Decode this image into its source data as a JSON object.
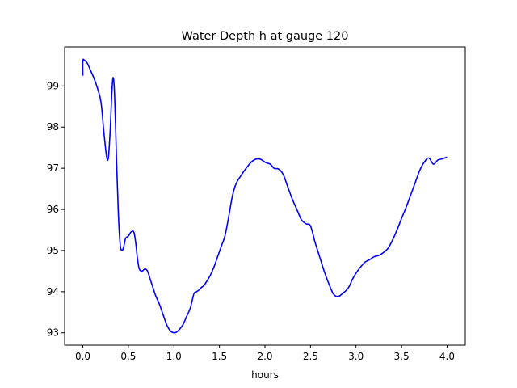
{
  "chart_data": {
    "type": "line",
    "title": "Water Depth h at gauge 120",
    "xlabel": "hours",
    "ylabel": "",
    "xlim": [
      -0.2,
      4.2
    ],
    "ylim": [
      92.7,
      99.95
    ],
    "xticks": [
      0.0,
      0.5,
      1.0,
      1.5,
      2.0,
      2.5,
      3.0,
      3.5,
      4.0
    ],
    "xtick_labels": [
      "0.0",
      "0.5",
      "1.0",
      "1.5",
      "2.0",
      "2.5",
      "3.0",
      "3.5",
      "4.0"
    ],
    "yticks": [
      93,
      94,
      95,
      96,
      97,
      98,
      99
    ],
    "ytick_labels": [
      "93",
      "94",
      "95",
      "96",
      "97",
      "98",
      "99"
    ],
    "grid": false,
    "series": [
      {
        "color": "#0000ff",
        "x": [
          0.0,
          0.0,
          0.02,
          0.05,
          0.08,
          0.12,
          0.16,
          0.2,
          0.23,
          0.26,
          0.28,
          0.3,
          0.32,
          0.335,
          0.35,
          0.37,
          0.39,
          0.41,
          0.43,
          0.45,
          0.47,
          0.5,
          0.53,
          0.56,
          0.58,
          0.6,
          0.62,
          0.65,
          0.68,
          0.71,
          0.74,
          0.77,
          0.8,
          0.84,
          0.88,
          0.92,
          0.96,
          1.0,
          1.03,
          1.06,
          1.1,
          1.14,
          1.18,
          1.22,
          1.25,
          1.28,
          1.3,
          1.33,
          1.36,
          1.4,
          1.44,
          1.48,
          1.52,
          1.56,
          1.6,
          1.64,
          1.67,
          1.7,
          1.73,
          1.76,
          1.8,
          1.85,
          1.9,
          1.95,
          2.0,
          2.03,
          2.06,
          2.1,
          2.15,
          2.2,
          2.25,
          2.3,
          2.35,
          2.4,
          2.45,
          2.5,
          2.55,
          2.6,
          2.65,
          2.7,
          2.75,
          2.8,
          2.85,
          2.9,
          2.93,
          2.96,
          3.0,
          3.05,
          3.1,
          3.15,
          3.2,
          3.25,
          3.3,
          3.35,
          3.4,
          3.45,
          3.5,
          3.55,
          3.6,
          3.65,
          3.7,
          3.75,
          3.8,
          3.85,
          3.9,
          3.95,
          4.0
        ],
        "y": [
          99.25,
          99.62,
          99.62,
          99.55,
          99.4,
          99.2,
          98.95,
          98.6,
          97.9,
          97.3,
          97.25,
          97.9,
          98.9,
          99.2,
          98.7,
          97.2,
          95.9,
          95.15,
          95.0,
          95.1,
          95.3,
          95.35,
          95.45,
          95.45,
          95.2,
          94.8,
          94.55,
          94.5,
          94.55,
          94.5,
          94.3,
          94.1,
          93.9,
          93.7,
          93.45,
          93.2,
          93.05,
          93.0,
          93.02,
          93.08,
          93.2,
          93.4,
          93.6,
          93.95,
          94.0,
          94.05,
          94.1,
          94.15,
          94.25,
          94.4,
          94.6,
          94.85,
          95.1,
          95.35,
          95.8,
          96.3,
          96.55,
          96.7,
          96.8,
          96.9,
          97.02,
          97.15,
          97.22,
          97.22,
          97.15,
          97.12,
          97.1,
          97.0,
          96.98,
          96.85,
          96.55,
          96.25,
          96.0,
          95.75,
          95.65,
          95.6,
          95.2,
          94.85,
          94.5,
          94.2,
          93.95,
          93.88,
          93.95,
          94.05,
          94.15,
          94.3,
          94.45,
          94.6,
          94.72,
          94.78,
          94.85,
          94.88,
          94.95,
          95.05,
          95.25,
          95.5,
          95.78,
          96.05,
          96.35,
          96.65,
          96.95,
          97.15,
          97.25,
          97.1,
          97.2,
          97.23,
          97.27
        ]
      }
    ]
  }
}
